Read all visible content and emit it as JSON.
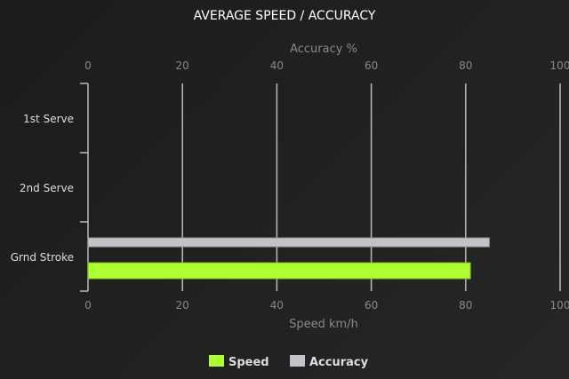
{
  "chart_data": {
    "type": "bar",
    "orientation": "horizontal",
    "title": "AVERAGE SPEED / ACCURACY",
    "categories": [
      "1st Serve",
      "2nd Serve",
      "Grnd Stroke"
    ],
    "series": [
      {
        "name": "Speed",
        "values": [
          null,
          null,
          81
        ],
        "color": "#adff2f",
        "axis": "bottom"
      },
      {
        "name": "Accuracy",
        "values": [
          null,
          null,
          85
        ],
        "color": "#c0c4c8",
        "axis": "top"
      }
    ],
    "top_axis": {
      "label": "Accuracy %",
      "range": [
        0,
        100
      ],
      "ticks": [
        0,
        20,
        40,
        60,
        80,
        100
      ]
    },
    "bottom_axis": {
      "label": "Speed km/h",
      "range": [
        0,
        100
      ],
      "ticks": [
        0,
        20,
        40,
        60,
        80,
        100
      ]
    },
    "grid": true,
    "legend": "bottom"
  }
}
